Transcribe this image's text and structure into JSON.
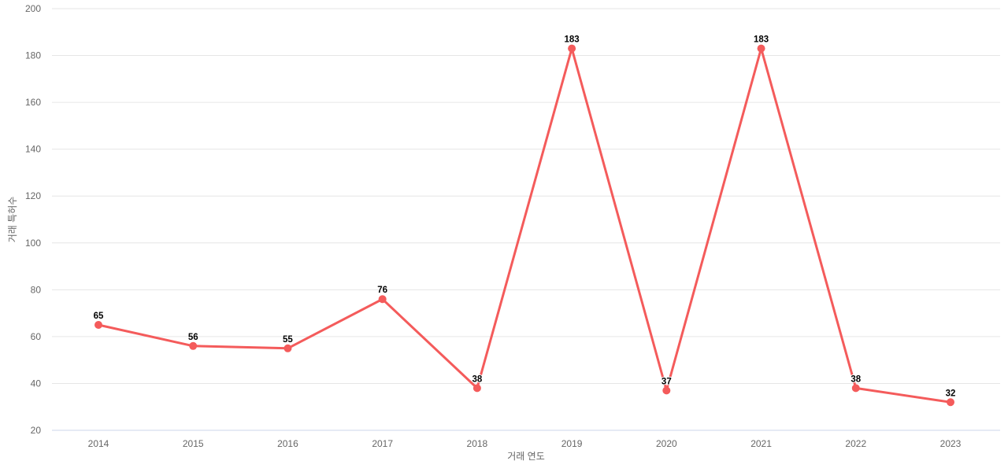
{
  "chart_data": {
    "type": "line",
    "title": "",
    "categories": [
      "2014",
      "2015",
      "2016",
      "2017",
      "2018",
      "2019",
      "2020",
      "2021",
      "2022",
      "2023"
    ],
    "values": [
      65,
      56,
      55,
      76,
      38,
      183,
      37,
      183,
      38,
      32
    ],
    "data_labels": [
      "65",
      "56",
      "55",
      "76",
      "38",
      "183",
      "37",
      "183",
      "38",
      "32"
    ],
    "xlabel": "거래 연도",
    "ylabel": "거래 특허수",
    "ylim": [
      20,
      200
    ],
    "ytick_step": 20,
    "ytick_labels": [
      "20",
      "40",
      "60",
      "80",
      "100",
      "120",
      "140",
      "160",
      "180",
      "200"
    ],
    "grid": true,
    "legend": "none",
    "colors": {
      "series": "#f45b5b",
      "marker": "#f45b5b",
      "gridline": "#e6e6e6",
      "axis_line": "#ccd6eb",
      "tick_label": "#666666",
      "axis_title": "#666666",
      "data_label": "#000000",
      "background": "#ffffff"
    }
  }
}
